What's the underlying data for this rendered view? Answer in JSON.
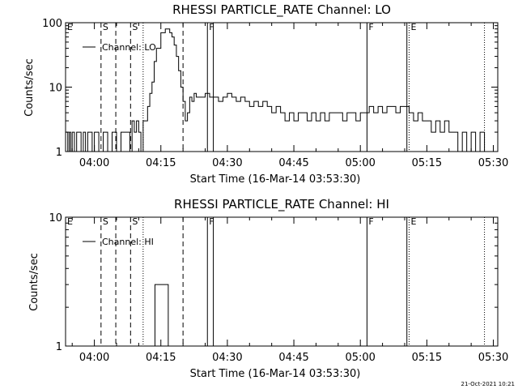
{
  "chart_data": [
    {
      "type": "line",
      "title": "RHESSI PARTICLE_RATE Channel: LO",
      "xlabel": "Start Time (16-Mar-14 03:53:30)",
      "ylabel": "Counts/sec",
      "yscale": "log",
      "xlim": [
        "03:53:30",
        "05:31:00"
      ],
      "ylim": [
        1,
        100
      ],
      "x_ticks": [
        "04:00",
        "04:15",
        "04:30",
        "04:45",
        "05:00",
        "05:15",
        "05:30"
      ],
      "y_ticks": [
        "1",
        "10",
        "100"
      ],
      "grid": false,
      "legend": "top-left",
      "series": [
        {
          "name": "Channel: LO",
          "x": [
            "03:53:30",
            "03:54:00",
            "03:54:20",
            "03:54:40",
            "03:55:00",
            "03:55:30",
            "03:56:00",
            "03:56:30",
            "03:57:00",
            "03:57:30",
            "03:58:00",
            "03:58:30",
            "03:59:00",
            "03:59:30",
            "04:00:00",
            "04:00:30",
            "04:01:00",
            "04:02:00",
            "04:03:00",
            "04:04:00",
            "04:05:00",
            "04:06:00",
            "04:07:00",
            "04:08:00",
            "04:08:30",
            "04:09:00",
            "04:09:30",
            "04:10:00",
            "04:10:30",
            "04:11:00",
            "04:12:00",
            "04:12:30",
            "04:13:00",
            "04:13:30",
            "04:14:00",
            "04:15:00",
            "04:16:00",
            "04:17:00",
            "04:17:30",
            "04:18:00",
            "04:18:30",
            "04:19:00",
            "04:19:30",
            "04:20:00",
            "04:20:30",
            "04:21:00",
            "04:21:30",
            "04:22:00",
            "04:22:30",
            "04:23:00",
            "04:24:00",
            "04:25:00",
            "04:26:00",
            "04:27:00",
            "04:28:00",
            "04:29:00",
            "04:30:00",
            "04:31:00",
            "04:32:00",
            "04:33:00",
            "04:34:00",
            "04:35:00",
            "04:36:00",
            "04:37:00",
            "04:38:00",
            "04:39:00",
            "04:40:00",
            "04:41:00",
            "04:42:00",
            "04:43:00",
            "04:44:00",
            "04:45:00",
            "04:46:00",
            "04:47:00",
            "04:48:00",
            "04:49:00",
            "04:50:00",
            "04:51:00",
            "04:52:00",
            "04:53:00",
            "04:54:00",
            "04:55:00",
            "04:56:00",
            "04:57:00",
            "04:58:00",
            "04:59:00",
            "05:00:00",
            "05:01:00",
            "05:02:00",
            "05:03:00",
            "05:04:00",
            "05:05:00",
            "05:06:00",
            "05:07:00",
            "05:08:00",
            "05:09:00",
            "05:10:00",
            "05:11:00",
            "05:12:00",
            "05:13:00",
            "05:14:00",
            "05:15:00",
            "05:16:00",
            "05:17:00",
            "05:18:00",
            "05:19:00",
            "05:20:00",
            "05:21:00",
            "05:22:00",
            "05:23:00",
            "05:24:00",
            "05:25:00",
            "05:26:00",
            "05:27:00",
            "05:28:00"
          ],
          "y": [
            2,
            1,
            2,
            1,
            2,
            1,
            2,
            2,
            1,
            2,
            1,
            2,
            2,
            1,
            2,
            2,
            1,
            2,
            1,
            2,
            1,
            2,
            2,
            1,
            3,
            2,
            3,
            2,
            1,
            3,
            5,
            8,
            12,
            25,
            40,
            70,
            80,
            70,
            60,
            45,
            30,
            18,
            10,
            6,
            3,
            4,
            7,
            6,
            8,
            7,
            7,
            8,
            7,
            7,
            6,
            7,
            8,
            7,
            6,
            7,
            6,
            5,
            6,
            5,
            6,
            5,
            4,
            5,
            4,
            3,
            4,
            3,
            4,
            4,
            3,
            4,
            3,
            4,
            3,
            4,
            4,
            4,
            3,
            4,
            4,
            3,
            4,
            4,
            5,
            4,
            5,
            4,
            5,
            5,
            4,
            5,
            5,
            4,
            3,
            4,
            3,
            3,
            2,
            3,
            2,
            3,
            2,
            2,
            1,
            2,
            1,
            2,
            1,
            2,
            1
          ]
        }
      ],
      "markers": [
        {
          "label": "E",
          "time": "03:53:30",
          "style": "none"
        },
        {
          "label": "S",
          "time": "04:01:30",
          "style": "dashed"
        },
        {
          "label": "",
          "time": "04:04:50",
          "style": "dashed"
        },
        {
          "label": "S",
          "time": "04:08:10",
          "style": "dashed"
        },
        {
          "label": "",
          "time": "04:11:00",
          "style": "dotted"
        },
        {
          "label": "",
          "time": "04:20:00",
          "style": "dashed"
        },
        {
          "label": "F",
          "time": "04:25:30",
          "style": "solid"
        },
        {
          "label": "",
          "time": "04:26:50",
          "style": "solid"
        },
        {
          "label": "F",
          "time": "05:01:30",
          "style": "solid"
        },
        {
          "label": "",
          "time": "05:10:30",
          "style": "solid"
        },
        {
          "label": "E",
          "time": "05:11:00",
          "style": "dotted"
        },
        {
          "label": "",
          "time": "05:28:00",
          "style": "dotted"
        }
      ]
    },
    {
      "type": "line",
      "title": "RHESSI PARTICLE_RATE Channel: HI",
      "xlabel": "Start Time (16-Mar-14 03:53:30)",
      "ylabel": "Counts/sec",
      "yscale": "log",
      "xlim": [
        "03:53:30",
        "05:31:00"
      ],
      "ylim": [
        1,
        10
      ],
      "x_ticks": [
        "04:00",
        "04:15",
        "04:30",
        "04:45",
        "05:00",
        "05:15",
        "05:30"
      ],
      "y_ticks": [
        "1",
        "10"
      ],
      "grid": false,
      "legend": "top-left",
      "series": [
        {
          "name": "Channel: HI",
          "x": [
            "04:13:00",
            "04:13:40",
            "04:16:00",
            "04:16:40"
          ],
          "y": [
            1,
            3,
            3,
            1
          ]
        }
      ],
      "markers": [
        {
          "label": "E",
          "time": "03:53:30",
          "style": "none"
        },
        {
          "label": "S",
          "time": "04:01:30",
          "style": "dashed"
        },
        {
          "label": "",
          "time": "04:04:50",
          "style": "dashed"
        },
        {
          "label": "S",
          "time": "04:08:10",
          "style": "dashed"
        },
        {
          "label": "",
          "time": "04:11:00",
          "style": "dotted"
        },
        {
          "label": "",
          "time": "04:20:00",
          "style": "dashed"
        },
        {
          "label": "F",
          "time": "04:25:30",
          "style": "solid"
        },
        {
          "label": "",
          "time": "04:26:50",
          "style": "solid"
        },
        {
          "label": "F",
          "time": "05:01:30",
          "style": "solid"
        },
        {
          "label": "",
          "time": "05:10:30",
          "style": "solid"
        },
        {
          "label": "E",
          "time": "05:11:00",
          "style": "dotted"
        },
        {
          "label": "",
          "time": "05:28:00",
          "style": "dotted"
        }
      ]
    }
  ],
  "footer": {
    "timestamp": "21-Oct-2021 10:21"
  }
}
